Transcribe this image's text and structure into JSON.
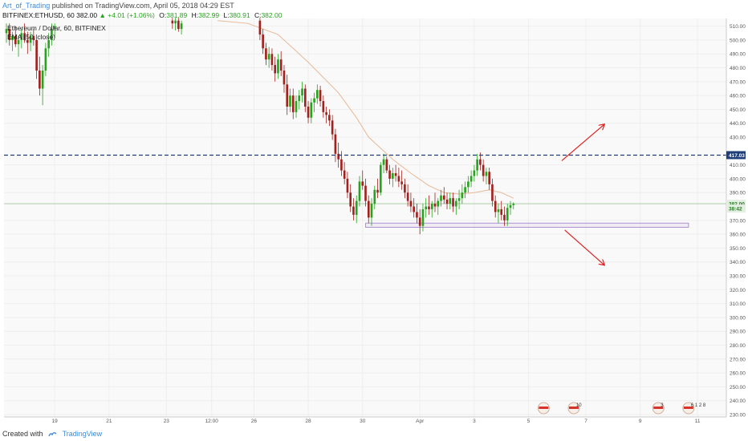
{
  "header": {
    "author": "Art_of_Trading",
    "published": "published on TradingView.com, April 05, 2018 04:29 EST"
  },
  "symbol_line": {
    "symbol": "BITFINEX:ETHUSD, 60",
    "last": "382.00",
    "change": "▲ +4.01 (+1.06%)",
    "o_label": "O:",
    "o": "381.89",
    "h_label": "H:",
    "h": "382.99",
    "l_label": "L:",
    "l": "380.91",
    "c_label": "C:",
    "c": "382.00"
  },
  "legend": {
    "title": "Ethereum / Dollar, 60, BITFINEX",
    "indicator": "EMA (50, close)"
  },
  "footer": {
    "created_with": "Created with",
    "brand": "TradingView"
  },
  "colors": {
    "up": "#26a41c",
    "down": "#a2211f",
    "ema": "#e7b896",
    "level": "#1f3f7a",
    "arrow": "#e02020",
    "zone": "#b090d0",
    "grid": "#eeeeee"
  },
  "chart_data": {
    "type": "candlestick",
    "symbol": "Ethereum / Dollar, 60, BITFINEX",
    "interval": "60",
    "ylim": [
      230,
      515
    ],
    "y_ticks": [
      510,
      500,
      490,
      480,
      470,
      460,
      450,
      440,
      430,
      410,
      400,
      390,
      370,
      360,
      350,
      340,
      330,
      320,
      310,
      300,
      290,
      280,
      270,
      260,
      250,
      240,
      230
    ],
    "x_ticks": [
      "19",
      "21",
      "23",
      "12:00",
      "26",
      "28",
      "30",
      "Apr",
      "3",
      "5",
      "7",
      "9",
      "11"
    ],
    "x_tick_index": [
      16,
      34,
      53,
      68,
      82,
      100,
      118,
      137,
      155,
      173,
      192,
      210,
      229
    ],
    "price_labels": [
      {
        "text": "417.03",
        "value": 417.03,
        "style": "level"
      },
      {
        "text": "382.00",
        "value": 382.0,
        "style": "last"
      },
      {
        "text": "38:42",
        "value": 378.5,
        "style": "timer"
      }
    ],
    "horizontal_level": 417.03,
    "last_price": 382.0,
    "support_zone": {
      "from_index": 119,
      "to_index": 226,
      "low": 365,
      "high": 368
    },
    "arrows": [
      {
        "from": [
          184,
          413
        ],
        "to": [
          198,
          439
        ],
        "direction": "up"
      },
      {
        "from": [
          185,
          363
        ],
        "to": [
          198,
          338
        ],
        "direction": "down"
      }
    ],
    "event_markers": [
      {
        "index": 178,
        "text": "",
        "kind": "flag"
      },
      {
        "index": 188,
        "text": "10",
        "kind": "flag"
      },
      {
        "index": 216,
        "text": "3",
        "kind": "flag"
      },
      {
        "index": 226,
        "text": "6 1 2 8",
        "kind": "flag"
      }
    ],
    "candles": [
      {
        "i": 0,
        "o": 505,
        "h": 512,
        "l": 498,
        "c": 508
      },
      {
        "i": 1,
        "o": 508,
        "h": 512,
        "l": 496,
        "c": 500
      },
      {
        "i": 2,
        "o": 500,
        "h": 506,
        "l": 492,
        "c": 503
      },
      {
        "i": 3,
        "o": 503,
        "h": 510,
        "l": 495,
        "c": 497
      },
      {
        "i": 4,
        "o": 497,
        "h": 503,
        "l": 488,
        "c": 500
      },
      {
        "i": 5,
        "o": 500,
        "h": 508,
        "l": 494,
        "c": 505
      },
      {
        "i": 6,
        "o": 505,
        "h": 512,
        "l": 498,
        "c": 500
      },
      {
        "i": 7,
        "o": 500,
        "h": 506,
        "l": 490,
        "c": 498
      },
      {
        "i": 8,
        "o": 498,
        "h": 506,
        "l": 492,
        "c": 503
      },
      {
        "i": 9,
        "o": 503,
        "h": 508,
        "l": 496,
        "c": 500
      },
      {
        "i": 10,
        "o": 500,
        "h": 504,
        "l": 472,
        "c": 478
      },
      {
        "i": 11,
        "o": 478,
        "h": 488,
        "l": 460,
        "c": 465
      },
      {
        "i": 12,
        "o": 465,
        "h": 482,
        "l": 453,
        "c": 478
      },
      {
        "i": 13,
        "o": 478,
        "h": 498,
        "l": 474,
        "c": 494
      },
      {
        "i": 14,
        "o": 494,
        "h": 505,
        "l": 488,
        "c": 500
      },
      {
        "i": 15,
        "o": 500,
        "h": 512,
        "l": 496,
        "c": 508
      },
      {
        "i": 16,
        "o": 508,
        "h": 512,
        "l": 502,
        "c": 510
      },
      {
        "i": 55,
        "o": 514,
        "h": 516,
        "l": 508,
        "c": 512
      },
      {
        "i": 56,
        "o": 512,
        "h": 516,
        "l": 507,
        "c": 514
      },
      {
        "i": 57,
        "o": 514,
        "h": 516,
        "l": 506,
        "c": 508
      },
      {
        "i": 58,
        "o": 508,
        "h": 514,
        "l": 504,
        "c": 512
      },
      {
        "i": 84,
        "o": 514,
        "h": 516,
        "l": 500,
        "c": 504
      },
      {
        "i": 85,
        "o": 504,
        "h": 508,
        "l": 490,
        "c": 494
      },
      {
        "i": 86,
        "o": 494,
        "h": 498,
        "l": 482,
        "c": 486
      },
      {
        "i": 87,
        "o": 486,
        "h": 495,
        "l": 480,
        "c": 490
      },
      {
        "i": 88,
        "o": 490,
        "h": 494,
        "l": 478,
        "c": 482
      },
      {
        "i": 89,
        "o": 482,
        "h": 488,
        "l": 470,
        "c": 476
      },
      {
        "i": 90,
        "o": 476,
        "h": 490,
        "l": 472,
        "c": 486
      },
      {
        "i": 91,
        "o": 486,
        "h": 492,
        "l": 474,
        "c": 478
      },
      {
        "i": 92,
        "o": 478,
        "h": 482,
        "l": 462,
        "c": 468
      },
      {
        "i": 93,
        "o": 468,
        "h": 475,
        "l": 446,
        "c": 452
      },
      {
        "i": 94,
        "o": 452,
        "h": 465,
        "l": 448,
        "c": 460
      },
      {
        "i": 95,
        "o": 460,
        "h": 465,
        "l": 443,
        "c": 448
      },
      {
        "i": 96,
        "o": 448,
        "h": 460,
        "l": 444,
        "c": 456
      },
      {
        "i": 97,
        "o": 456,
        "h": 464,
        "l": 450,
        "c": 460
      },
      {
        "i": 98,
        "o": 460,
        "h": 470,
        "l": 455,
        "c": 465
      },
      {
        "i": 99,
        "o": 465,
        "h": 468,
        "l": 448,
        "c": 452
      },
      {
        "i": 100,
        "o": 452,
        "h": 456,
        "l": 440,
        "c": 444
      },
      {
        "i": 101,
        "o": 444,
        "h": 458,
        "l": 440,
        "c": 455
      },
      {
        "i": 102,
        "o": 455,
        "h": 462,
        "l": 448,
        "c": 458
      },
      {
        "i": 103,
        "o": 458,
        "h": 468,
        "l": 454,
        "c": 464
      },
      {
        "i": 104,
        "o": 464,
        "h": 467,
        "l": 452,
        "c": 456
      },
      {
        "i": 105,
        "o": 456,
        "h": 460,
        "l": 444,
        "c": 448
      },
      {
        "i": 106,
        "o": 448,
        "h": 452,
        "l": 440,
        "c": 446
      },
      {
        "i": 107,
        "o": 446,
        "h": 450,
        "l": 438,
        "c": 442
      },
      {
        "i": 108,
        "o": 442,
        "h": 446,
        "l": 428,
        "c": 432
      },
      {
        "i": 109,
        "o": 432,
        "h": 436,
        "l": 412,
        "c": 418
      },
      {
        "i": 110,
        "o": 418,
        "h": 426,
        "l": 408,
        "c": 414
      },
      {
        "i": 111,
        "o": 414,
        "h": 420,
        "l": 402,
        "c": 406
      },
      {
        "i": 112,
        "o": 406,
        "h": 412,
        "l": 396,
        "c": 400
      },
      {
        "i": 113,
        "o": 400,
        "h": 405,
        "l": 386,
        "c": 390
      },
      {
        "i": 114,
        "o": 390,
        "h": 396,
        "l": 376,
        "c": 380
      },
      {
        "i": 115,
        "o": 380,
        "h": 386,
        "l": 370,
        "c": 374
      },
      {
        "i": 116,
        "o": 374,
        "h": 388,
        "l": 368,
        "c": 384
      },
      {
        "i": 117,
        "o": 384,
        "h": 402,
        "l": 380,
        "c": 398
      },
      {
        "i": 118,
        "o": 398,
        "h": 406,
        "l": 392,
        "c": 395
      },
      {
        "i": 119,
        "o": 395,
        "h": 400,
        "l": 380,
        "c": 384
      },
      {
        "i": 120,
        "o": 384,
        "h": 388,
        "l": 368,
        "c": 372
      },
      {
        "i": 121,
        "o": 372,
        "h": 386,
        "l": 366,
        "c": 382
      },
      {
        "i": 122,
        "o": 382,
        "h": 395,
        "l": 378,
        "c": 392
      },
      {
        "i": 123,
        "o": 392,
        "h": 400,
        "l": 386,
        "c": 390
      },
      {
        "i": 124,
        "o": 390,
        "h": 412,
        "l": 388,
        "c": 410
      },
      {
        "i": 125,
        "o": 410,
        "h": 418,
        "l": 404,
        "c": 414
      },
      {
        "i": 126,
        "o": 414,
        "h": 416,
        "l": 404,
        "c": 406
      },
      {
        "i": 127,
        "o": 406,
        "h": 410,
        "l": 396,
        "c": 400
      },
      {
        "i": 128,
        "o": 400,
        "h": 408,
        "l": 394,
        "c": 404
      },
      {
        "i": 129,
        "o": 404,
        "h": 410,
        "l": 398,
        "c": 402
      },
      {
        "i": 130,
        "o": 402,
        "h": 408,
        "l": 394,
        "c": 398
      },
      {
        "i": 131,
        "o": 398,
        "h": 406,
        "l": 392,
        "c": 396
      },
      {
        "i": 132,
        "o": 396,
        "h": 400,
        "l": 386,
        "c": 390
      },
      {
        "i": 133,
        "o": 390,
        "h": 396,
        "l": 380,
        "c": 384
      },
      {
        "i": 134,
        "o": 384,
        "h": 390,
        "l": 376,
        "c": 380
      },
      {
        "i": 135,
        "o": 380,
        "h": 386,
        "l": 372,
        "c": 376
      },
      {
        "i": 136,
        "o": 376,
        "h": 382,
        "l": 368,
        "c": 372
      },
      {
        "i": 137,
        "o": 372,
        "h": 378,
        "l": 360,
        "c": 366
      },
      {
        "i": 138,
        "o": 366,
        "h": 382,
        "l": 362,
        "c": 378
      },
      {
        "i": 139,
        "o": 378,
        "h": 386,
        "l": 372,
        "c": 380
      },
      {
        "i": 140,
        "o": 380,
        "h": 388,
        "l": 374,
        "c": 378
      },
      {
        "i": 141,
        "o": 378,
        "h": 384,
        "l": 372,
        "c": 382
      },
      {
        "i": 142,
        "o": 382,
        "h": 390,
        "l": 376,
        "c": 380
      },
      {
        "i": 143,
        "o": 380,
        "h": 386,
        "l": 374,
        "c": 384
      },
      {
        "i": 144,
        "o": 384,
        "h": 392,
        "l": 380,
        "c": 388
      },
      {
        "i": 145,
        "o": 388,
        "h": 394,
        "l": 382,
        "c": 385
      },
      {
        "i": 146,
        "o": 385,
        "h": 390,
        "l": 378,
        "c": 382
      },
      {
        "i": 147,
        "o": 382,
        "h": 390,
        "l": 378,
        "c": 386
      },
      {
        "i": 148,
        "o": 386,
        "h": 390,
        "l": 376,
        "c": 380
      },
      {
        "i": 149,
        "o": 380,
        "h": 386,
        "l": 374,
        "c": 384
      },
      {
        "i": 150,
        "o": 384,
        "h": 392,
        "l": 378,
        "c": 386
      },
      {
        "i": 151,
        "o": 386,
        "h": 396,
        "l": 382,
        "c": 390
      },
      {
        "i": 152,
        "o": 390,
        "h": 398,
        "l": 386,
        "c": 394
      },
      {
        "i": 153,
        "o": 394,
        "h": 402,
        "l": 390,
        "c": 398
      },
      {
        "i": 154,
        "o": 398,
        "h": 406,
        "l": 394,
        "c": 402
      },
      {
        "i": 155,
        "o": 402,
        "h": 410,
        "l": 398,
        "c": 406
      },
      {
        "i": 156,
        "o": 406,
        "h": 418,
        "l": 402,
        "c": 414
      },
      {
        "i": 157,
        "o": 414,
        "h": 419,
        "l": 406,
        "c": 410
      },
      {
        "i": 158,
        "o": 410,
        "h": 414,
        "l": 398,
        "c": 402
      },
      {
        "i": 159,
        "o": 402,
        "h": 408,
        "l": 396,
        "c": 405
      },
      {
        "i": 160,
        "o": 405,
        "h": 408,
        "l": 392,
        "c": 396
      },
      {
        "i": 161,
        "o": 396,
        "h": 400,
        "l": 380,
        "c": 384
      },
      {
        "i": 162,
        "o": 384,
        "h": 388,
        "l": 372,
        "c": 376
      },
      {
        "i": 163,
        "o": 376,
        "h": 382,
        "l": 368,
        "c": 378
      },
      {
        "i": 164,
        "o": 378,
        "h": 384,
        "l": 370,
        "c": 374
      },
      {
        "i": 165,
        "o": 374,
        "h": 380,
        "l": 366,
        "c": 370
      },
      {
        "i": 166,
        "o": 370,
        "h": 382,
        "l": 366,
        "c": 379
      },
      {
        "i": 167,
        "o": 379,
        "h": 384,
        "l": 374,
        "c": 381
      },
      {
        "i": 168,
        "o": 381,
        "h": 383,
        "l": 378,
        "c": 382
      }
    ],
    "ema": [
      [
        70,
        514
      ],
      [
        80,
        512
      ],
      [
        90,
        504
      ],
      [
        100,
        484
      ],
      [
        110,
        462
      ],
      [
        116,
        444
      ],
      [
        120,
        430
      ],
      [
        124,
        422
      ],
      [
        128,
        414
      ],
      [
        134,
        404
      ],
      [
        140,
        395
      ],
      [
        145,
        390
      ],
      [
        150,
        389
      ],
      [
        155,
        390
      ],
      [
        160,
        392
      ],
      [
        164,
        390
      ],
      [
        168,
        386
      ]
    ]
  }
}
